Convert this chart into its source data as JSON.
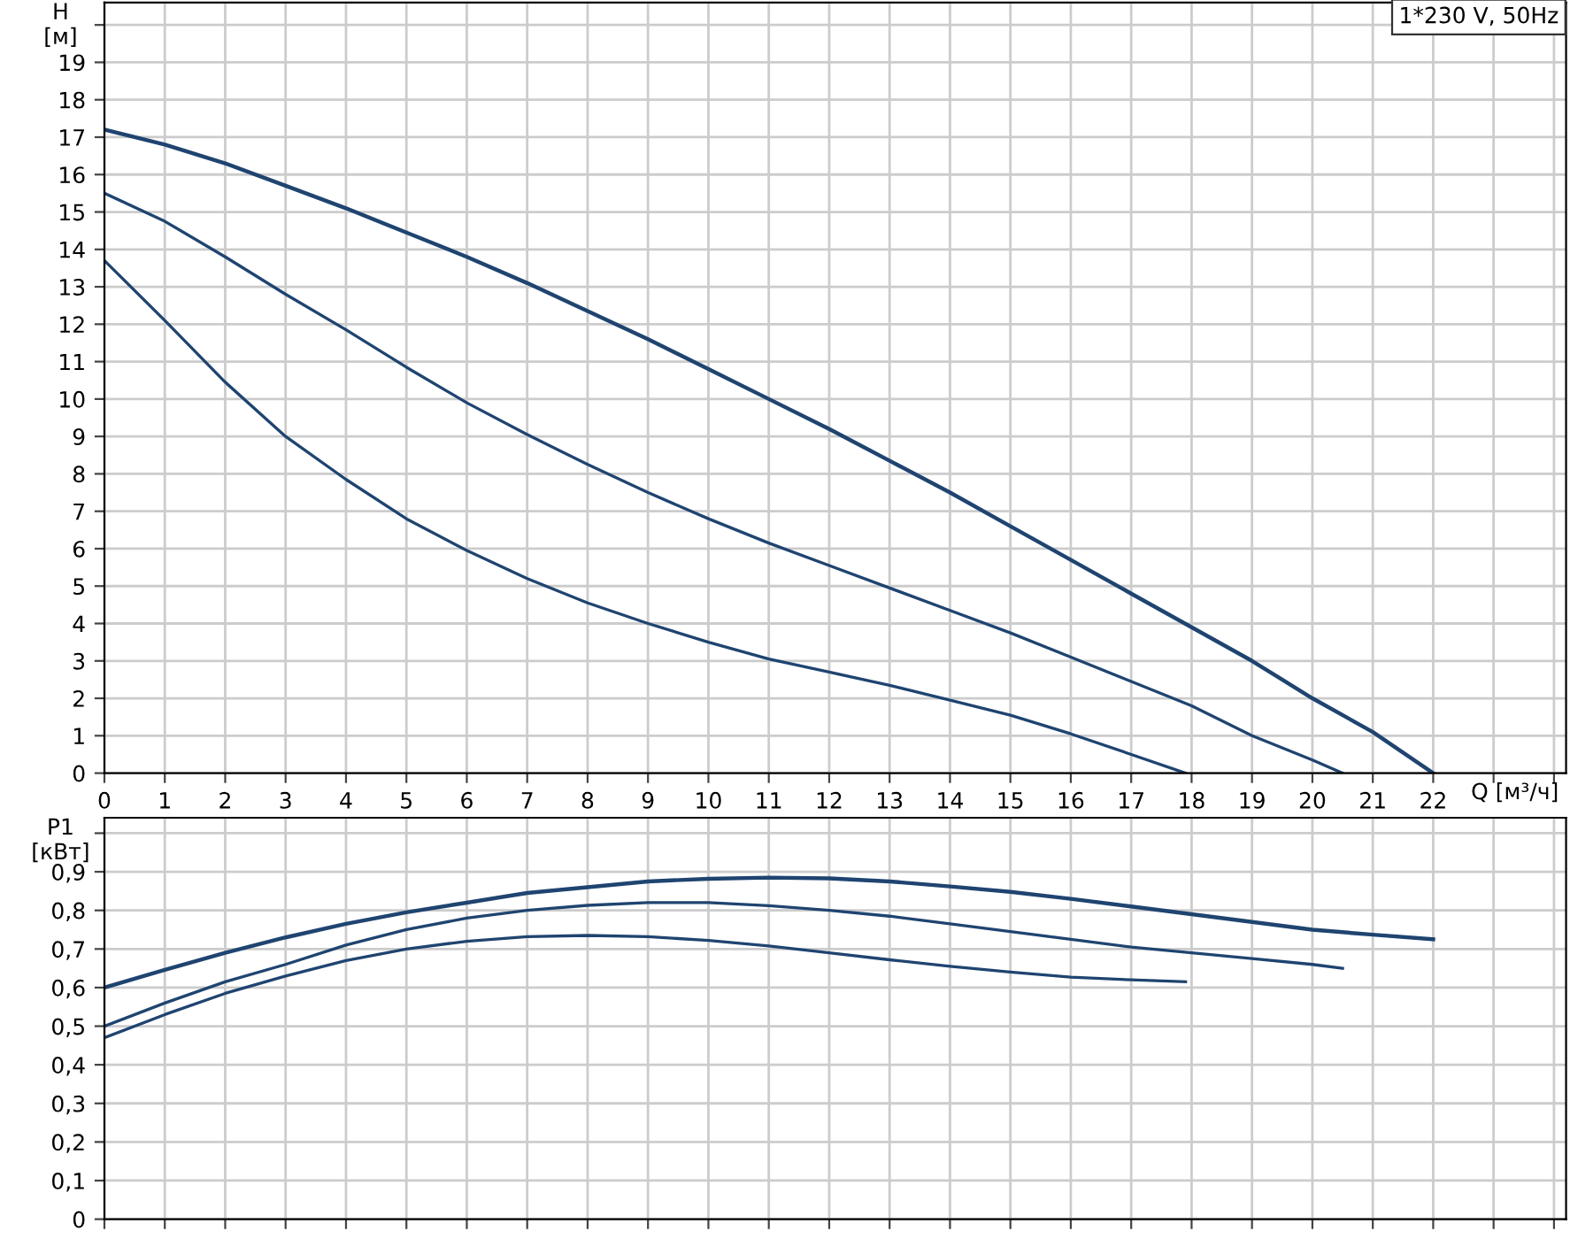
{
  "chart_data": [
    {
      "type": "line",
      "xlabel": "Q [м³/ч]",
      "ylabel": "H\n[м]",
      "annotations": [
        "1*230 V, 50Hz"
      ],
      "grid": true,
      "marker": "none",
      "line_style": "solid",
      "xlim": [
        0,
        24.2
      ],
      "ylim": [
        0,
        20.6
      ],
      "xticks": [
        0,
        1,
        2,
        3,
        4,
        5,
        6,
        7,
        8,
        9,
        10,
        11,
        12,
        13,
        14,
        15,
        16,
        17,
        18,
        19,
        20,
        21,
        22,
        {
          "value": 23,
          "label": null
        },
        {
          "value": 24,
          "label": null
        }
      ],
      "yticks": [
        0,
        1,
        2,
        3,
        4,
        5,
        6,
        7,
        8,
        9,
        10,
        11,
        12,
        13,
        14,
        15,
        16,
        17,
        18,
        19,
        {
          "value": 20,
          "label": null
        }
      ],
      "series": [
        {
          "color": "#1f4470",
          "x": [
            0,
            1,
            2,
            3,
            4,
            5,
            6,
            7,
            8,
            9,
            10,
            11,
            12,
            13,
            14,
            15,
            16,
            17,
            18,
            19,
            20,
            21,
            22
          ],
          "values": [
            17.2,
            16.8,
            16.3,
            15.7,
            15.1,
            14.45,
            13.8,
            13.1,
            12.35,
            11.6,
            10.8,
            10.0,
            9.2,
            8.35,
            7.5,
            6.6,
            5.7,
            4.8,
            3.9,
            3.0,
            2.0,
            1.1,
            0
          ]
        },
        {
          "color": "#1f4470",
          "x": [
            0,
            1,
            2,
            3,
            4,
            5,
            6,
            7,
            8,
            9,
            10,
            11,
            12,
            13,
            14,
            15,
            16,
            17,
            18,
            19,
            20,
            20.5
          ],
          "values": [
            15.5,
            14.75,
            13.8,
            12.8,
            11.85,
            10.85,
            9.9,
            9.05,
            8.25,
            7.5,
            6.8,
            6.15,
            5.55,
            4.95,
            4.35,
            3.75,
            3.1,
            2.45,
            1.8,
            1.0,
            0.35,
            0
          ]
        },
        {
          "color": "#1f4470",
          "x": [
            0,
            1,
            2,
            3,
            4,
            5,
            6,
            7,
            8,
            9,
            10,
            11,
            12,
            13,
            14,
            15,
            16,
            17,
            17.9
          ],
          "values": [
            13.7,
            12.1,
            10.45,
            9.0,
            7.85,
            6.8,
            5.95,
            5.2,
            4.55,
            4.0,
            3.5,
            3.05,
            2.7,
            2.35,
            1.95,
            1.55,
            1.05,
            0.5,
            0
          ]
        }
      ]
    },
    {
      "type": "line",
      "ylabel": "P1\n[кВт]",
      "grid": true,
      "marker": "none",
      "line_style": "solid",
      "tick_labels": "y",
      "xlim": [
        0,
        24.2
      ],
      "ylim": [
        0,
        1.04
      ],
      "xticks": [
        0,
        1,
        2,
        3,
        4,
        5,
        6,
        7,
        8,
        9,
        10,
        11,
        12,
        13,
        14,
        15,
        16,
        17,
        18,
        19,
        20,
        21,
        22,
        23,
        24
      ],
      "yticks": [
        0,
        {
          "value": 0.1,
          "label": "0,1"
        },
        {
          "value": 0.2,
          "label": "0,2"
        },
        {
          "value": 0.3,
          "label": "0,3"
        },
        {
          "value": 0.4,
          "label": "0,4"
        },
        {
          "value": 0.5,
          "label": "0,5"
        },
        {
          "value": 0.6,
          "label": "0,6"
        },
        {
          "value": 0.7,
          "label": "0,7"
        },
        {
          "value": 0.8,
          "label": "0,8"
        },
        {
          "value": 0.9,
          "label": "0,9"
        },
        {
          "value": 1.0,
          "label": null
        }
      ],
      "series": [
        {
          "color": "#1f4470",
          "x": [
            0,
            1,
            2,
            3,
            4,
            5,
            6,
            7,
            8,
            9,
            10,
            11,
            12,
            13,
            14,
            15,
            16,
            17,
            18,
            19,
            20,
            21,
            22
          ],
          "values": [
            0.6,
            0.646,
            0.69,
            0.73,
            0.765,
            0.795,
            0.82,
            0.845,
            0.86,
            0.875,
            0.882,
            0.885,
            0.883,
            0.875,
            0.862,
            0.848,
            0.83,
            0.81,
            0.79,
            0.77,
            0.75,
            0.737,
            0.725
          ]
        },
        {
          "color": "#1f4470",
          "x": [
            0,
            1,
            2,
            3,
            4,
            5,
            6,
            7,
            8,
            9,
            10,
            11,
            12,
            13,
            14,
            15,
            16,
            17,
            18,
            19,
            20,
            20.5
          ],
          "values": [
            0.5,
            0.56,
            0.615,
            0.66,
            0.71,
            0.75,
            0.78,
            0.8,
            0.813,
            0.82,
            0.82,
            0.812,
            0.8,
            0.785,
            0.765,
            0.745,
            0.725,
            0.705,
            0.69,
            0.675,
            0.66,
            0.65
          ]
        },
        {
          "color": "#1f4470",
          "x": [
            0,
            1,
            2,
            3,
            4,
            5,
            6,
            7,
            8,
            9,
            10,
            11,
            12,
            13,
            14,
            15,
            16,
            17,
            17.9
          ],
          "values": [
            0.47,
            0.53,
            0.585,
            0.63,
            0.67,
            0.7,
            0.72,
            0.732,
            0.735,
            0.732,
            0.722,
            0.708,
            0.69,
            0.672,
            0.655,
            0.64,
            0.627,
            0.62,
            0.615
          ]
        }
      ]
    }
  ]
}
